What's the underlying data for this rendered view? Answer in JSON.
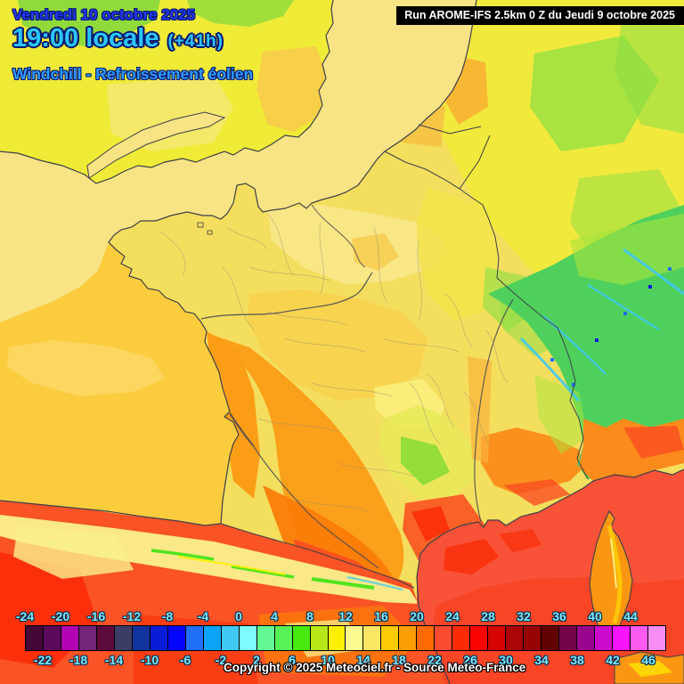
{
  "header": {
    "date": "Vendredi 10 octobre 2025",
    "time": "19:00 locale",
    "time_offset": "(+41h)",
    "parameter": "Windchill - Refroissement éolien"
  },
  "run_box": {
    "label": "Run AROME-IFS 2.5km 0 Z du Jeudi 9 octobre 2025"
  },
  "footer": {
    "copyright": "Copyright © 2025 Meteociel.fr - Source Meteo-France"
  },
  "theme": {
    "date_color": "#2238F2",
    "time_color": "#29C6FB",
    "param_color": "#2E9BFF",
    "outline_navy": "#0A1870",
    "outline_deep": "#0B2E4E",
    "scale_label_color": "#7FE9FA"
  },
  "colorbar": {
    "description": "Windchill scale in °C, 2-degree steps",
    "min": -24,
    "max": 48,
    "step": 2,
    "top_labels": [
      "-24",
      "-20",
      "-16",
      "-12",
      "-8",
      "-4",
      "0",
      "4",
      "8",
      "12",
      "16",
      "20",
      "24",
      "28",
      "32",
      "36",
      "40",
      "44"
    ],
    "bottom_labels": [
      "-22",
      "-18",
      "-14",
      "-10",
      "-6",
      "-2",
      "2",
      "6",
      "10",
      "14",
      "18",
      "22",
      "26",
      "30",
      "34",
      "38",
      "42",
      "46"
    ],
    "swatch_colors": [
      "#440736",
      "#5B0A5C",
      "#B203B2",
      "#73257A",
      "#5D0B3C",
      "#3A3E66",
      "#10339C",
      "#0A1DD6",
      "#0505FE",
      "#1F70F6",
      "#0AA3F6",
      "#40C9F2",
      "#7DFDFD",
      "#63F893",
      "#57F257",
      "#47E80A",
      "#B8E818",
      "#FDF001",
      "#FCFC8E",
      "#FBE664",
      "#FDCB06",
      "#FC9E05",
      "#FD6A02",
      "#FA4A30",
      "#FB2C04",
      "#FB0404",
      "#D60404",
      "#AA0606",
      "#960404",
      "#620202",
      "#740448",
      "#9A0590",
      "#CB0ACB",
      "#F814F8",
      "#F95BF0",
      "#FA8DF5"
    ]
  },
  "map": {
    "model": "AROME-IFS 2.5km",
    "region": "France",
    "sea_colors": {
      "channel_north_sea": "#F8E385",
      "bay_of_biscay": "#FBCC3E",
      "mediterranean": "#F85238"
    }
  }
}
